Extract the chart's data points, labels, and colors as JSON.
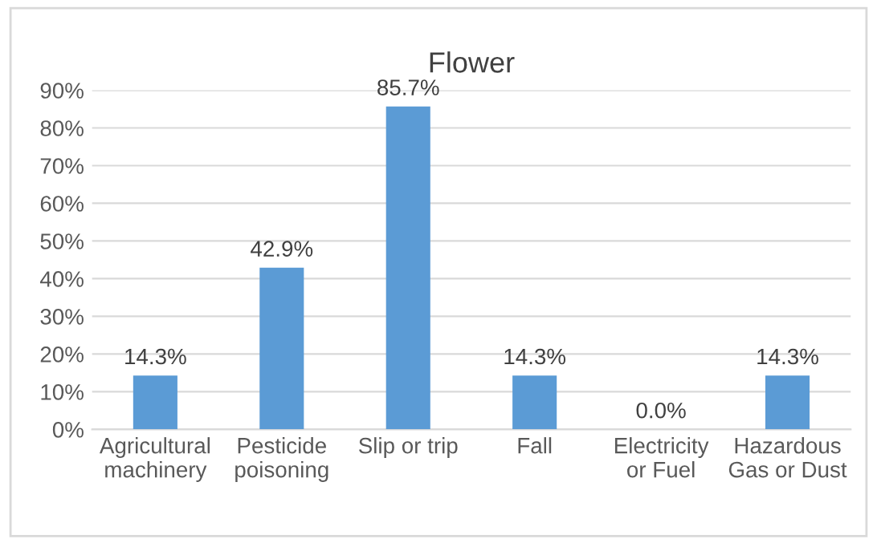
{
  "chart_data": {
    "type": "bar",
    "title": "Flower",
    "categories": [
      "Agricultural\nmachinery",
      "Pesticide\npoisoning",
      "Slip or trip",
      "Fall",
      "Electricity\nor Fuel",
      "Hazardous\nGas or Dust"
    ],
    "values": [
      14.3,
      42.9,
      85.7,
      14.3,
      0.0,
      14.3
    ],
    "value_labels": [
      "14.3%",
      "42.9%",
      "85.7%",
      "14.3%",
      "0.0%",
      "14.3%"
    ],
    "color": "#5b9bd5",
    "ylim": [
      0,
      90
    ],
    "yticks": [
      {
        "value": 0,
        "label": "0%"
      },
      {
        "value": 10,
        "label": "10%"
      },
      {
        "value": 20,
        "label": "20%"
      },
      {
        "value": 30,
        "label": "30%"
      },
      {
        "value": 40,
        "label": "40%"
      },
      {
        "value": 50,
        "label": "50%"
      },
      {
        "value": 60,
        "label": "60%"
      },
      {
        "value": 70,
        "label": "70%"
      },
      {
        "value": 80,
        "label": "80%"
      },
      {
        "value": 90,
        "label": "90%"
      }
    ],
    "grid": "y"
  }
}
